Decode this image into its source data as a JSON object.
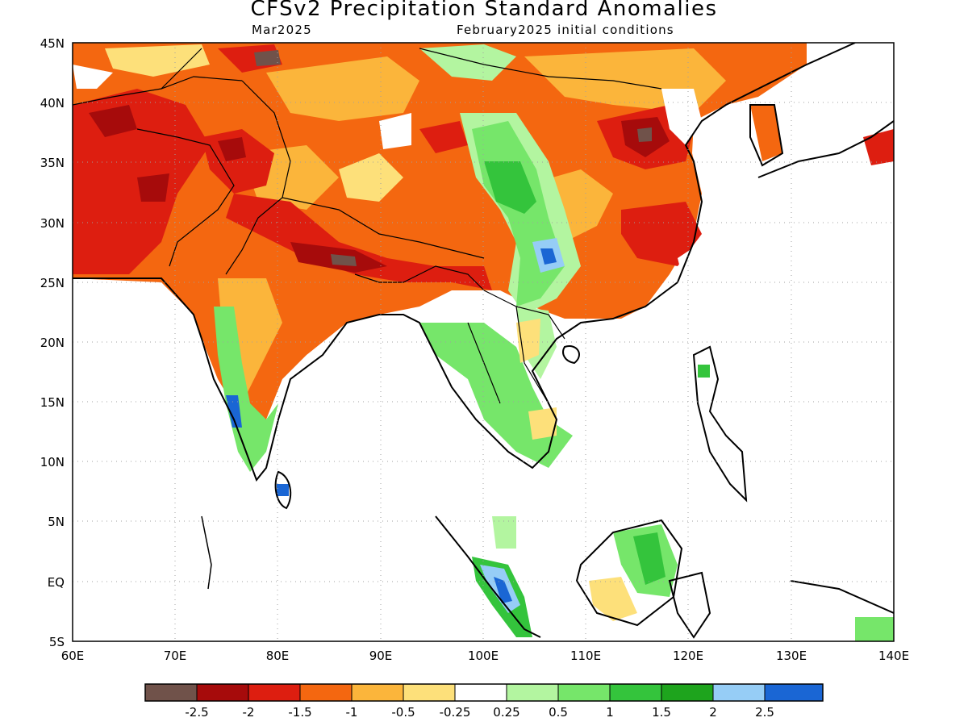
{
  "title": "CFSv2 Precipitation Standard Anomalies",
  "valid_month": "Mar2025",
  "initial_conditions": "February2025 initial conditions",
  "axes": {
    "lon_labels": [
      "60E",
      "70E",
      "80E",
      "90E",
      "100E",
      "110E",
      "120E",
      "130E",
      "140E"
    ],
    "lat_labels": [
      "45N",
      "40N",
      "35N",
      "30N",
      "25N",
      "20N",
      "15N",
      "10N",
      "5N",
      "EQ",
      "5S"
    ],
    "lon_range": [
      60,
      140
    ],
    "lat_range": [
      -5,
      45
    ],
    "grid": "dotted"
  },
  "colorbar": {
    "colors": [
      "#70524a",
      "#a60b0b",
      "#dd1e10",
      "#f46710",
      "#fbb53b",
      "#fde07a",
      "#ffffff",
      "#b3f5a0",
      "#76e66a",
      "#34c43c",
      "#1ea41d",
      "#96cdf6",
      "#1a66d4"
    ],
    "labels": [
      "-2.5",
      "-2",
      "-1.5",
      "-1",
      "-0.5",
      "-0.25",
      "0.25",
      "0.5",
      "1",
      "1.5",
      "2",
      "2.5"
    ]
  }
}
